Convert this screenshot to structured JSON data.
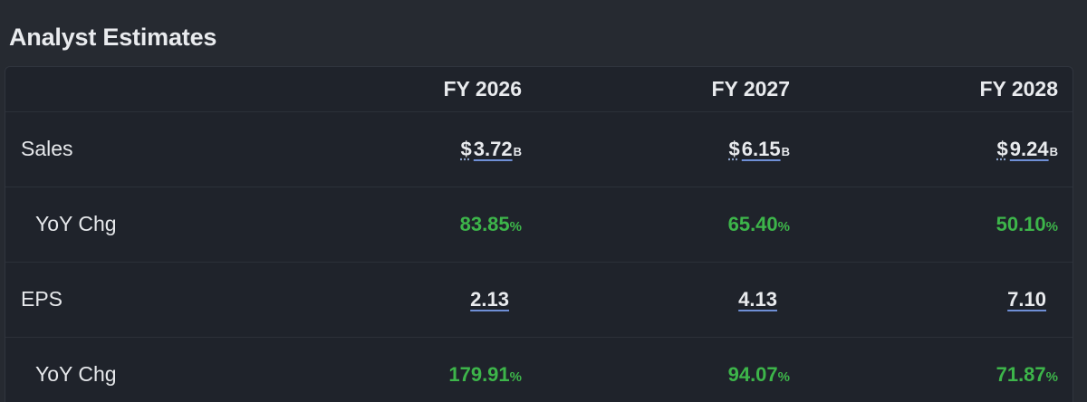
{
  "title": "Analyst Estimates",
  "columns": [
    "FY 2026",
    "FY 2027",
    "FY 2028"
  ],
  "colors": {
    "positive": "#3db54a",
    "link_underline": "#6f8fd6",
    "background": "#262a31",
    "card": "#1f232b"
  },
  "rows": {
    "sales": {
      "label": "Sales",
      "currency": "$",
      "unit": "B",
      "values": [
        "3.72",
        "6.15",
        "9.24"
      ]
    },
    "sales_yoy": {
      "label": "YoY Chg",
      "unit": "%",
      "values": [
        "83.85",
        "65.40",
        "50.10"
      ]
    },
    "eps": {
      "label": "EPS",
      "values": [
        "2.13",
        "4.13",
        "7.10"
      ]
    },
    "eps_yoy": {
      "label": "YoY Chg",
      "unit": "%",
      "values": [
        "179.91",
        "94.07",
        "71.87"
      ]
    }
  }
}
